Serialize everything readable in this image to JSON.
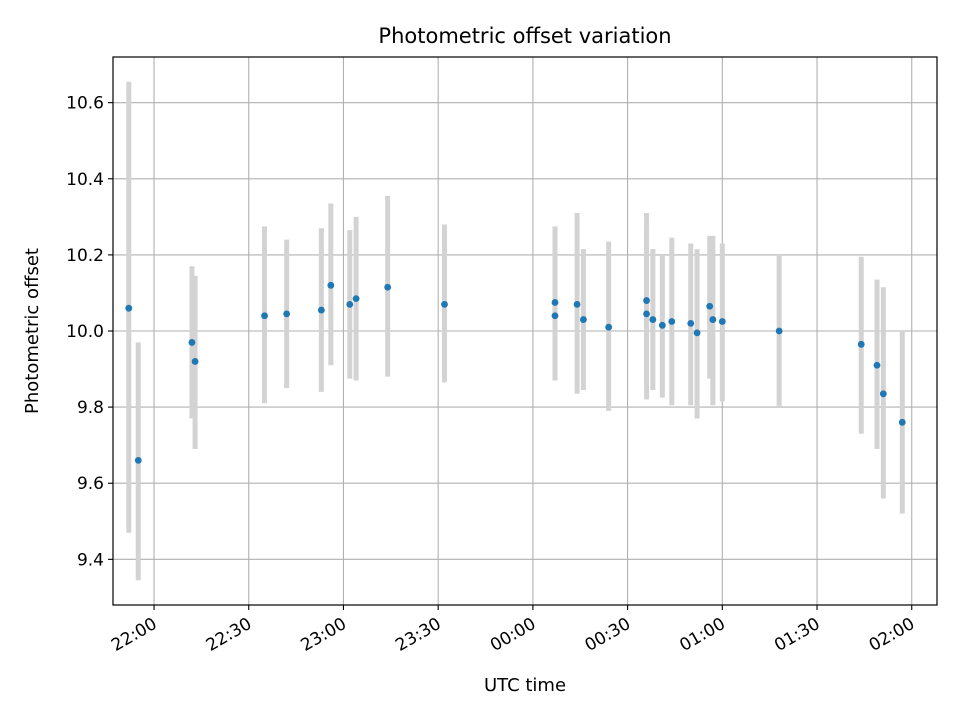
{
  "chart_data": {
    "type": "scatter",
    "title": "Photometric offset variation",
    "xlabel": "UTC time",
    "ylabel": "Photometric offset",
    "x_ticks": [
      "22:00",
      "22:30",
      "23:00",
      "23:30",
      "00:00",
      "00:30",
      "01:00",
      "01:30",
      "02:00"
    ],
    "y_ticks": [
      "9.4",
      "9.6",
      "9.8",
      "10.0",
      "10.2",
      "10.4",
      "10.6"
    ],
    "xlim": [
      "21:47",
      "02:08"
    ],
    "ylim": [
      9.28,
      10.72
    ],
    "grid": true,
    "error_bar_color": "#d3d3d3",
    "marker_color": "#1f77b4",
    "points": [
      {
        "t": "21:52",
        "y": 10.06,
        "ylo": 9.47,
        "yhi": 10.655
      },
      {
        "t": "21:55",
        "y": 9.66,
        "ylo": 9.345,
        "yhi": 9.97
      },
      {
        "t": "22:12",
        "y": 9.97,
        "ylo": 9.77,
        "yhi": 10.17
      },
      {
        "t": "22:13",
        "y": 9.92,
        "ylo": 9.69,
        "yhi": 10.145
      },
      {
        "t": "22:35",
        "y": 10.04,
        "ylo": 9.81,
        "yhi": 10.275
      },
      {
        "t": "22:42",
        "y": 10.045,
        "ylo": 9.85,
        "yhi": 10.24
      },
      {
        "t": "22:53",
        "y": 10.055,
        "ylo": 9.84,
        "yhi": 10.27
      },
      {
        "t": "22:56",
        "y": 10.12,
        "ylo": 9.91,
        "yhi": 10.335
      },
      {
        "t": "23:02",
        "y": 10.07,
        "ylo": 9.875,
        "yhi": 10.265
      },
      {
        "t": "23:04",
        "y": 10.085,
        "ylo": 9.87,
        "yhi": 10.3
      },
      {
        "t": "23:14",
        "y": 10.115,
        "ylo": 9.88,
        "yhi": 10.355
      },
      {
        "t": "23:32",
        "y": 10.07,
        "ylo": 9.865,
        "yhi": 10.28
      },
      {
        "t": "00:07",
        "y": 10.075,
        "ylo": 9.875,
        "yhi": 10.275
      },
      {
        "t": "00:07",
        "y": 10.04,
        "ylo": 9.87,
        "yhi": 10.215
      },
      {
        "t": "00:14",
        "y": 10.07,
        "ylo": 9.835,
        "yhi": 10.31
      },
      {
        "t": "00:16",
        "y": 10.03,
        "ylo": 9.845,
        "yhi": 10.215
      },
      {
        "t": "00:24",
        "y": 10.01,
        "ylo": 9.79,
        "yhi": 10.235
      },
      {
        "t": "00:36",
        "y": 10.08,
        "ylo": 9.855,
        "yhi": 10.31
      },
      {
        "t": "00:36",
        "y": 10.045,
        "ylo": 9.82,
        "yhi": 10.275
      },
      {
        "t": "00:38",
        "y": 10.03,
        "ylo": 9.845,
        "yhi": 10.215
      },
      {
        "t": "00:41",
        "y": 10.015,
        "ylo": 9.825,
        "yhi": 10.2
      },
      {
        "t": "00:44",
        "y": 10.025,
        "ylo": 9.805,
        "yhi": 10.245
      },
      {
        "t": "00:50",
        "y": 10.02,
        "ylo": 9.805,
        "yhi": 10.23
      },
      {
        "t": "00:52",
        "y": 9.995,
        "ylo": 9.77,
        "yhi": 10.215
      },
      {
        "t": "00:56",
        "y": 10.065,
        "ylo": 9.875,
        "yhi": 10.25
      },
      {
        "t": "00:57",
        "y": 10.03,
        "ylo": 9.805,
        "yhi": 10.25
      },
      {
        "t": "01:00",
        "y": 10.025,
        "ylo": 9.815,
        "yhi": 10.23
      },
      {
        "t": "01:18",
        "y": 10.0,
        "ylo": 9.8,
        "yhi": 10.2
      },
      {
        "t": "01:44",
        "y": 9.965,
        "ylo": 9.73,
        "yhi": 10.195
      },
      {
        "t": "01:49",
        "y": 9.91,
        "ylo": 9.69,
        "yhi": 10.135
      },
      {
        "t": "01:51",
        "y": 9.835,
        "ylo": 9.56,
        "yhi": 10.115
      },
      {
        "t": "01:57",
        "y": 9.76,
        "ylo": 9.52,
        "yhi": 10.0
      }
    ]
  }
}
